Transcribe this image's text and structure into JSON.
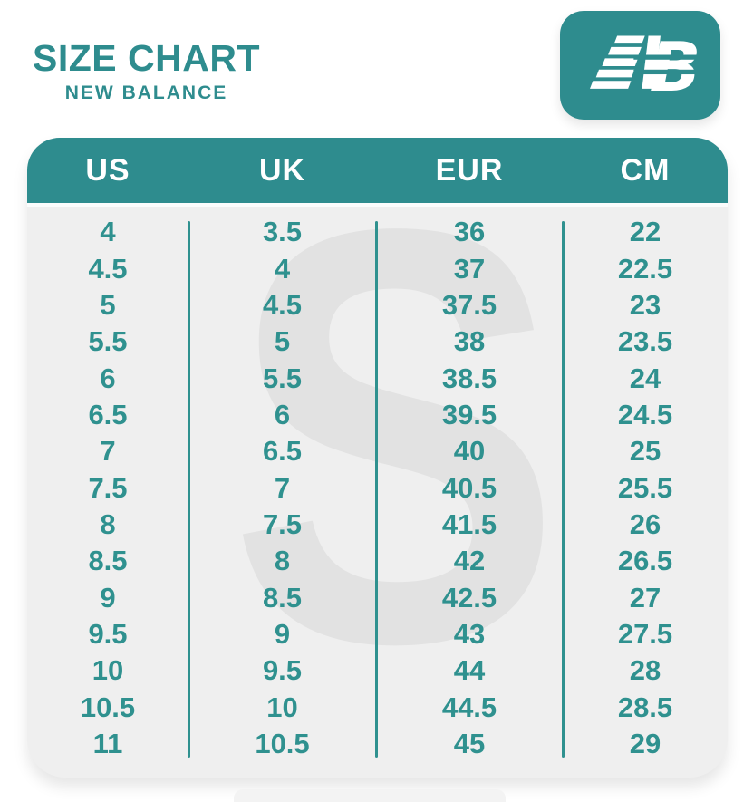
{
  "header": {
    "title": "SIZE CHART",
    "subtitle": "NEW BALANCE"
  },
  "logo": {
    "name": "new-balance-logo",
    "letters": "NB",
    "letter_b": "B"
  },
  "card": {
    "watermark_letter": "S"
  },
  "colors": {
    "brand": "#2E8C8E",
    "digits": "#2F918F",
    "card_bg": "#EFEFEF",
    "watermark": "#E2E2E2",
    "header_text": "#FFFFFF"
  },
  "chart_data": {
    "type": "table",
    "title": "SIZE CHART",
    "subtitle": "NEW BALANCE",
    "columns": [
      "US",
      "UK",
      "EUR",
      "CM"
    ],
    "rows": [
      [
        "4",
        "3.5",
        "36",
        "22"
      ],
      [
        "4.5",
        "4",
        "37",
        "22.5"
      ],
      [
        "5",
        "4.5",
        "37.5",
        "23"
      ],
      [
        "5.5",
        "5",
        "38",
        "23.5"
      ],
      [
        "6",
        "5.5",
        "38.5",
        "24"
      ],
      [
        "6.5",
        "6",
        "39.5",
        "24.5"
      ],
      [
        "7",
        "6.5",
        "40",
        "25"
      ],
      [
        "7.5",
        "7",
        "40.5",
        "25.5"
      ],
      [
        "8",
        "7.5",
        "41.5",
        "26"
      ],
      [
        "8.5",
        "8",
        "42",
        "26.5"
      ],
      [
        "9",
        "8.5",
        "42.5",
        "27"
      ],
      [
        "9.5",
        "9",
        "43",
        "27.5"
      ],
      [
        "10",
        "9.5",
        "44",
        "28"
      ],
      [
        "10.5",
        "10",
        "44.5",
        "28.5"
      ],
      [
        "11",
        "10.5",
        "45",
        "29"
      ]
    ]
  }
}
